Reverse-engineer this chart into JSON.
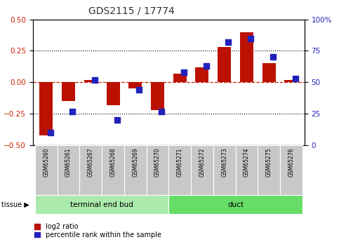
{
  "title": "GDS2115 / 17774",
  "samples": [
    "GSM65260",
    "GSM65261",
    "GSM65267",
    "GSM65268",
    "GSM65269",
    "GSM65270",
    "GSM65271",
    "GSM65272",
    "GSM65273",
    "GSM65274",
    "GSM65275",
    "GSM65276"
  ],
  "log2_ratio": [
    -0.42,
    -0.15,
    0.02,
    -0.18,
    -0.05,
    -0.22,
    0.07,
    0.12,
    0.28,
    0.4,
    0.15,
    0.02
  ],
  "percentile": [
    10,
    27,
    52,
    20,
    44,
    27,
    58,
    63,
    82,
    85,
    70,
    53
  ],
  "tissue_groups": [
    {
      "label": "terminal end bud",
      "start": 0,
      "end": 6,
      "color": "#aaeaaa"
    },
    {
      "label": "duct",
      "start": 6,
      "end": 12,
      "color": "#66dd66"
    }
  ],
  "ylim_left": [
    -0.5,
    0.5
  ],
  "ylim_right": [
    0,
    100
  ],
  "yticks_left": [
    -0.5,
    -0.25,
    0.0,
    0.25,
    0.5
  ],
  "yticks_right": [
    0,
    25,
    50,
    75,
    100
  ],
  "bar_color_log2": "#BB1100",
  "bar_color_pct": "#2222BB",
  "bar_width": 0.6,
  "pct_marker_size": 28,
  "hline_color": "#CC2200",
  "dotted_color": "black",
  "tick_label_color_left": "#CC2200",
  "tick_label_color_right": "#2222BB",
  "title_color": "#333333",
  "legend_log2_label": "log2 ratio",
  "legend_pct_label": "percentile rank within the sample",
  "tissue_label": "tissue",
  "sample_bg_color": "#CCCCCC",
  "sample_bg_color2": "#AAAAAA"
}
